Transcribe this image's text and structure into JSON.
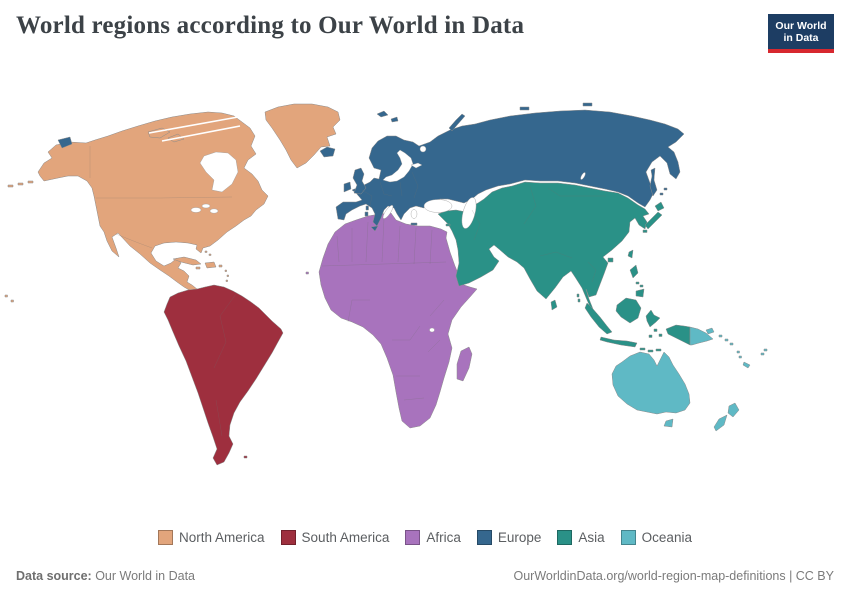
{
  "header": {
    "title": "World regions according to Our World in Data"
  },
  "logo": {
    "line1": "Our World",
    "line2": "in Data",
    "bg_color": "#1d3d63",
    "accent_color": "#d7282f"
  },
  "map": {
    "regions": [
      {
        "id": "north_america",
        "label": "North America",
        "color": "#e2a57c"
      },
      {
        "id": "south_america",
        "label": "South America",
        "color": "#9e2f3e"
      },
      {
        "id": "africa",
        "label": "Africa",
        "color": "#a873bd"
      },
      {
        "id": "europe",
        "label": "Europe",
        "color": "#35678e"
      },
      {
        "id": "asia",
        "label": "Asia",
        "color": "#2a9187"
      },
      {
        "id": "oceania",
        "label": "Oceania",
        "color": "#5fb9c5"
      }
    ]
  },
  "legend": {
    "items": [
      {
        "id": "north_america",
        "label": "North America",
        "color": "#e2a57c"
      },
      {
        "id": "south_america",
        "label": "South America",
        "color": "#9e2f3e"
      },
      {
        "id": "africa",
        "label": "Africa",
        "color": "#a873bd"
      },
      {
        "id": "europe",
        "label": "Europe",
        "color": "#35678e"
      },
      {
        "id": "asia",
        "label": "Asia",
        "color": "#2a9187"
      },
      {
        "id": "oceania",
        "label": "Oceania",
        "color": "#5fb9c5"
      }
    ]
  },
  "footer": {
    "source_label": "Data source:",
    "source_value": " Our World in Data",
    "right_text": "OurWorldinData.org/world-region-map-definitions | CC BY"
  }
}
